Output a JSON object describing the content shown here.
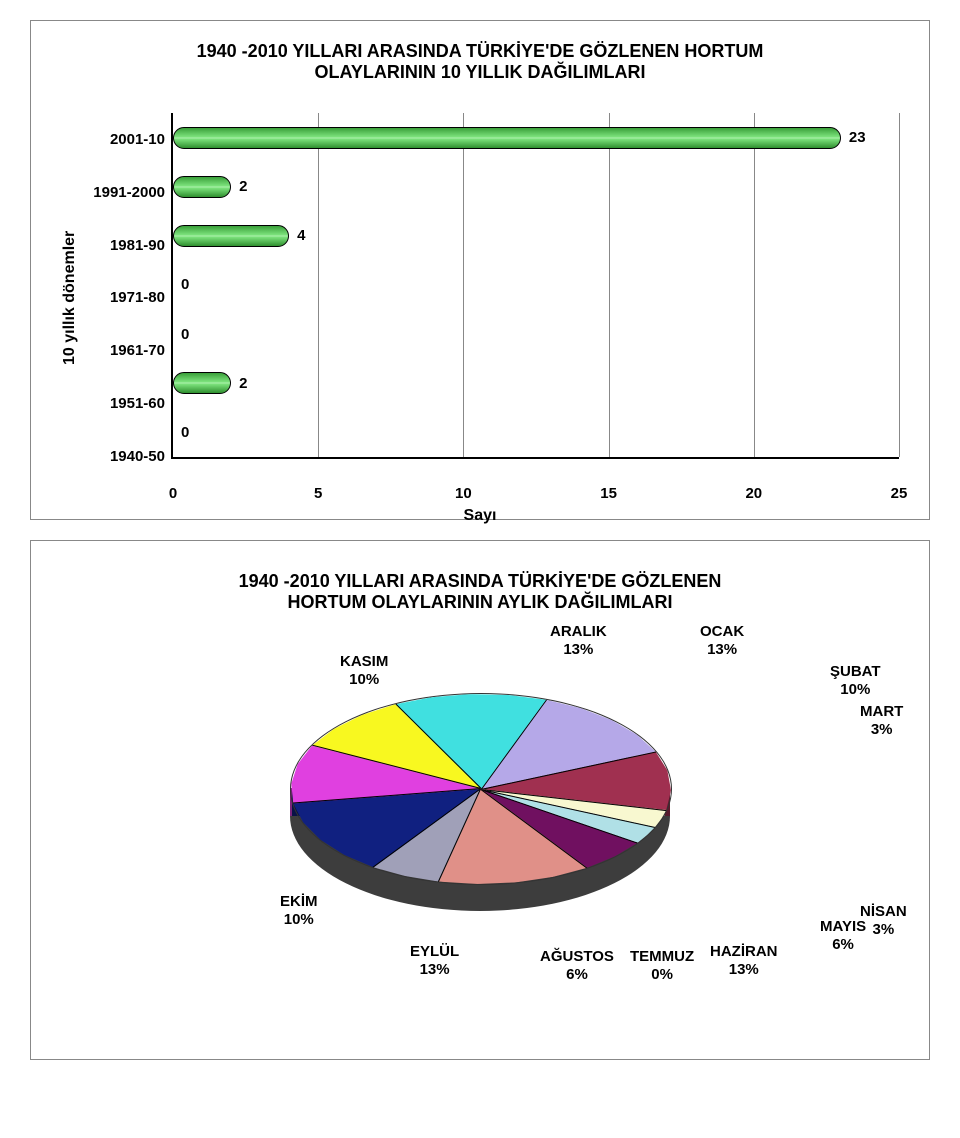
{
  "bar_chart": {
    "title_line1": "1940 -2010 YILLARI ARASINDA TÜRKİYE'DE GÖZLENEN HORTUM",
    "title_line2": "OLAYLARININ 10 YILLIK DAĞILIMLARI",
    "y_axis_label": "10 yıllık dönemler",
    "x_axis_label": "Sayı",
    "x_ticks": [
      "0",
      "5",
      "10",
      "15",
      "20",
      "25"
    ],
    "x_max": 25,
    "categories": [
      "2001-10",
      "1991-2000",
      "1981-90",
      "1971-80",
      "1961-70",
      "1951-60",
      "1940-50"
    ],
    "values": [
      23,
      2,
      4,
      0,
      0,
      2,
      0
    ]
  },
  "pie_chart": {
    "title_line1": "1940 -2010 YILLARI ARASINDA TÜRKİYE'DE GÖZLENEN",
    "title_line2": "HORTUM OLAYLARININ AYLIK DAĞILIMLARI",
    "slices": [
      {
        "name": "OCAK",
        "pct": "13%",
        "value": 13,
        "color": "#b5a8e8"
      },
      {
        "name": "ŞUBAT",
        "pct": "10%",
        "value": 10,
        "color": "#a03050"
      },
      {
        "name": "MART",
        "pct": "3%",
        "value": 3,
        "color": "#f8f8d0"
      },
      {
        "name": "NİSAN",
        "pct": "3%",
        "value": 3,
        "color": "#b0e0e6"
      },
      {
        "name": "MAYIS",
        "pct": "6%",
        "value": 6,
        "color": "#701060"
      },
      {
        "name": "HAZİRAN",
        "pct": "13%",
        "value": 13,
        "color": "#e09088"
      },
      {
        "name": "TEMMUZ",
        "pct": "0%",
        "value": 0,
        "color": "#c0c0c0"
      },
      {
        "name": "AĞUSTOS",
        "pct": "6%",
        "value": 6,
        "color": "#a0a0b8"
      },
      {
        "name": "EYLÜL",
        "pct": "13%",
        "value": 13,
        "color": "#102080"
      },
      {
        "name": "EKİM",
        "pct": "10%",
        "value": 10,
        "color": "#e040e0"
      },
      {
        "name": "KASIM",
        "pct": "10%",
        "value": 10,
        "color": "#f8f820"
      },
      {
        "name": "ARALIK",
        "pct": "13%",
        "value": 13,
        "color": "#40e0e0"
      }
    ],
    "start_angle_deg": -70
  }
}
